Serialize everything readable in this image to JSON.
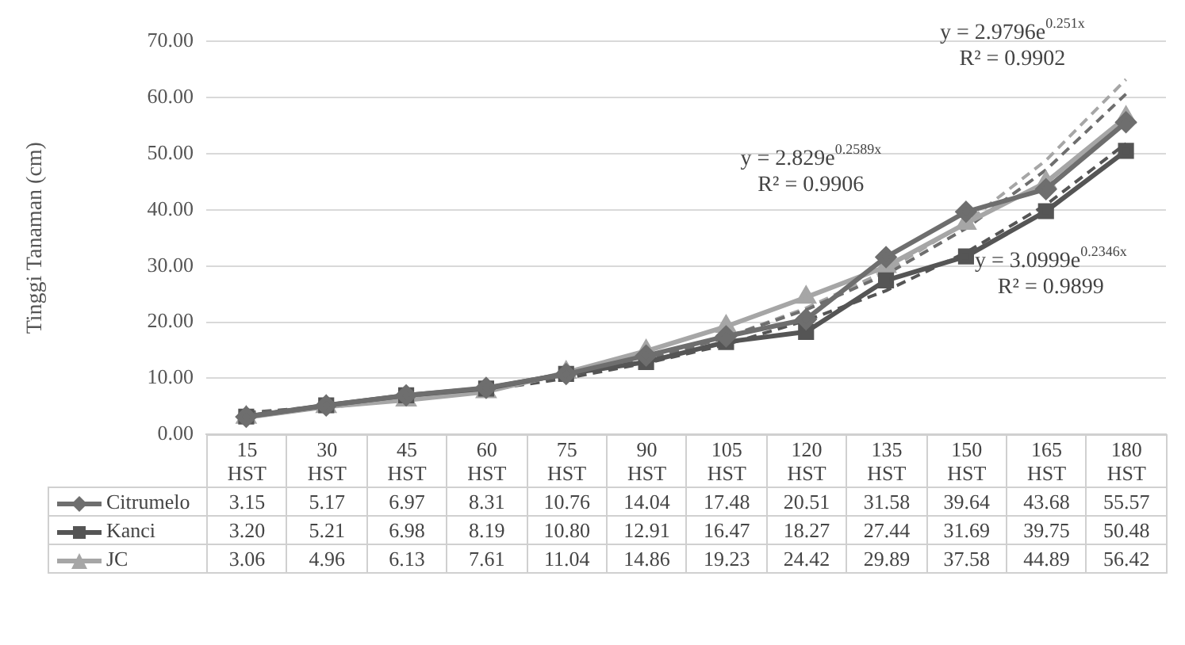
{
  "chart_data": {
    "type": "line",
    "ylabel": "Tinggi Tanaman (cm)",
    "categories": [
      "15 HST",
      "30 HST",
      "45 HST",
      "60 HST",
      "75 HST",
      "90 HST",
      "105 HST",
      "120 HST",
      "135 HST",
      "150 HST",
      "165 HST",
      "180 HST"
    ],
    "series": [
      {
        "name": "Citrumelo",
        "color": "#6e6e6e",
        "marker": "diamond",
        "values": [
          3.15,
          5.17,
          6.97,
          8.31,
          10.76,
          14.04,
          17.48,
          20.51,
          31.58,
          39.64,
          43.68,
          55.57
        ],
        "value_labels": [
          "3.15",
          "5.17",
          "6.97",
          "8.31",
          "10.76",
          "14.04",
          "17.48",
          "20.51",
          "31.58",
          "39.64",
          "43.68",
          "55.57"
        ]
      },
      {
        "name": "Kanci",
        "color": "#555555",
        "marker": "square",
        "values": [
          3.2,
          5.21,
          6.98,
          8.19,
          10.8,
          12.91,
          16.47,
          18.27,
          27.44,
          31.69,
          39.75,
          50.48
        ],
        "value_labels": [
          "3.20",
          "5.21",
          "6.98",
          "8.19",
          "10.80",
          "12.91",
          "16.47",
          "18.27",
          "27.44",
          "31.69",
          "39.75",
          "50.48"
        ]
      },
      {
        "name": "JC",
        "color": "#a6a6a6",
        "marker": "triangle",
        "values": [
          3.06,
          4.96,
          6.13,
          7.61,
          11.04,
          14.86,
          19.23,
          24.42,
          29.89,
          37.58,
          44.89,
          56.42
        ],
        "value_labels": [
          "3.06",
          "4.96",
          "6.13",
          "7.61",
          "11.04",
          "14.86",
          "19.23",
          "24.42",
          "29.89",
          "37.58",
          "44.89",
          "56.42"
        ]
      },
      {
        "type": "line",
        "color": "#6e6e6e",
        "marker": "none",
        "line_style": "dashed",
        "values": [
          3.8,
          4.9,
          6.3,
          8.1,
          10.5,
          13.4,
          17.3,
          22.2,
          28.5,
          36.7,
          47.1,
          60.6
        ]
      },
      {
        "type": "line",
        "color": "#555555",
        "marker": "none",
        "line_style": "dashed",
        "values": [
          3.9,
          5.0,
          6.3,
          7.9,
          10.0,
          12.7,
          16.0,
          20.3,
          25.6,
          32.4,
          40.9,
          51.8
        ]
      },
      {
        "type": "line",
        "color": "#a6a6a6",
        "marker": "none",
        "line_style": "dashed",
        "values": [
          3.7,
          4.8,
          6.2,
          8.0,
          10.3,
          13.4,
          17.3,
          22.5,
          29.1,
          37.7,
          48.8,
          63.2
        ]
      }
    ],
    "ylim": [
      0,
      70
    ],
    "yticks": [
      {
        "value": 0,
        "label": "0.00"
      },
      {
        "value": 10,
        "label": "10.00"
      },
      {
        "value": 20,
        "label": "20.00"
      },
      {
        "value": 30,
        "label": "30.00"
      },
      {
        "value": 40,
        "label": "40.00"
      },
      {
        "value": 50,
        "label": "50.00"
      },
      {
        "value": 60,
        "label": "60.00"
      },
      {
        "value": 70,
        "label": "70.00"
      }
    ],
    "grid": "y",
    "legend": "bottom",
    "annotations": [
      "y = 2.9796e$^{0.251x}$",
      "R² = 0.9902",
      "y = 2.829e$^{0.2589x}$",
      "R² = 0.9906",
      "y = 3.0999e$^{0.2346x}$",
      "R² = 0.9899"
    ]
  }
}
